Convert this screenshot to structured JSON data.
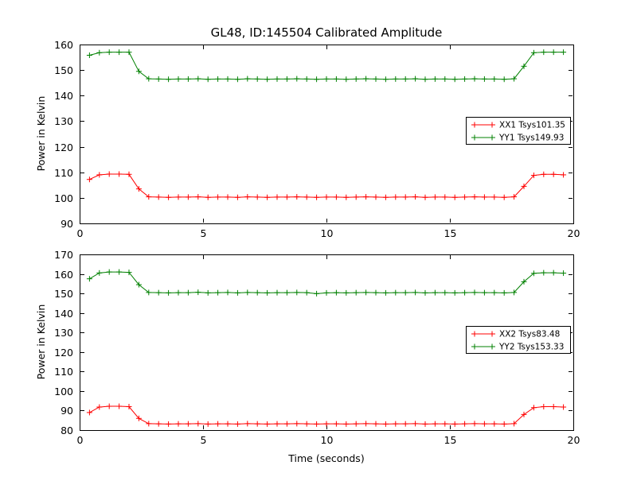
{
  "figure": {
    "title": "GL48, ID:145504 Calibrated Amplitude",
    "xlabel": "Time (seconds)",
    "background": "#ffffff"
  },
  "colors": {
    "xx": "#ff0000",
    "yy": "#008000",
    "axis": "#000000"
  },
  "chart_data": [
    {
      "type": "line",
      "ylabel": "Power in Kelvin",
      "xlim": [
        0,
        20
      ],
      "ylim": [
        90,
        160
      ],
      "xticks": [
        0,
        5,
        10,
        15,
        20
      ],
      "yticks": [
        90,
        100,
        110,
        120,
        130,
        140,
        150,
        160
      ],
      "grid": false,
      "legend_position": "center-right",
      "x": [
        0.4,
        0.8,
        1.2,
        1.6,
        2.0,
        2.4,
        2.8,
        3.2,
        3.6,
        4.0,
        4.4,
        4.8,
        5.2,
        5.6,
        6.0,
        6.4,
        6.8,
        7.2,
        7.6,
        8.0,
        8.4,
        8.8,
        9.2,
        9.6,
        10.0,
        10.4,
        10.8,
        11.2,
        11.6,
        12.0,
        12.4,
        12.8,
        13.2,
        13.6,
        14.0,
        14.4,
        14.8,
        15.2,
        15.6,
        16.0,
        16.4,
        16.8,
        17.2,
        17.6,
        18.0,
        18.4,
        18.8,
        19.2,
        19.6
      ],
      "series": [
        {
          "id": "XX1",
          "name": "XX1 Tsys101.35",
          "color": "#ff0000",
          "marker": "plus",
          "y": [
            107.2,
            109.0,
            109.3,
            109.3,
            109.2,
            103.5,
            100.4,
            100.3,
            100.2,
            100.3,
            100.3,
            100.4,
            100.2,
            100.3,
            100.3,
            100.2,
            100.4,
            100.3,
            100.2,
            100.3,
            100.3,
            100.4,
            100.3,
            100.2,
            100.3,
            100.3,
            100.2,
            100.3,
            100.4,
            100.3,
            100.2,
            100.3,
            100.3,
            100.4,
            100.2,
            100.3,
            100.3,
            100.2,
            100.3,
            100.4,
            100.3,
            100.3,
            100.2,
            100.4,
            104.5,
            108.8,
            109.2,
            109.2,
            109.0
          ]
        },
        {
          "id": "YY1",
          "name": "YY1 Tsys149.93",
          "color": "#008000",
          "marker": "plus",
          "y": [
            155.8,
            156.8,
            157.0,
            157.0,
            157.0,
            149.5,
            146.6,
            146.5,
            146.4,
            146.5,
            146.5,
            146.6,
            146.4,
            146.5,
            146.5,
            146.4,
            146.6,
            146.5,
            146.4,
            146.5,
            146.5,
            146.6,
            146.5,
            146.4,
            146.5,
            146.5,
            146.4,
            146.5,
            146.6,
            146.5,
            146.4,
            146.5,
            146.5,
            146.6,
            146.4,
            146.5,
            146.5,
            146.4,
            146.5,
            146.6,
            146.5,
            146.5,
            146.4,
            146.6,
            151.5,
            156.8,
            157.0,
            157.0,
            157.0
          ]
        }
      ]
    },
    {
      "type": "line",
      "ylabel": "Power in Kelvin",
      "xlim": [
        0,
        20
      ],
      "ylim": [
        80,
        170
      ],
      "xticks": [
        0,
        5,
        10,
        15,
        20
      ],
      "yticks": [
        80,
        90,
        100,
        110,
        120,
        130,
        140,
        150,
        160,
        170
      ],
      "grid": false,
      "legend_position": "center-right",
      "x": [
        0.4,
        0.8,
        1.2,
        1.6,
        2.0,
        2.4,
        2.8,
        3.2,
        3.6,
        4.0,
        4.4,
        4.8,
        5.2,
        5.6,
        6.0,
        6.4,
        6.8,
        7.2,
        7.6,
        8.0,
        8.4,
        8.8,
        9.2,
        9.6,
        10.0,
        10.4,
        10.8,
        11.2,
        11.6,
        12.0,
        12.4,
        12.8,
        13.2,
        13.6,
        14.0,
        14.4,
        14.8,
        15.2,
        15.6,
        16.0,
        16.4,
        16.8,
        17.2,
        17.6,
        18.0,
        18.4,
        18.8,
        19.2,
        19.6
      ],
      "series": [
        {
          "id": "XX2",
          "name": "XX2 Tsys83.48",
          "color": "#ff0000",
          "marker": "plus",
          "y": [
            89.0,
            91.8,
            92.2,
            92.2,
            92.0,
            86.0,
            83.3,
            83.2,
            83.1,
            83.2,
            83.2,
            83.3,
            83.1,
            83.2,
            83.2,
            83.1,
            83.3,
            83.2,
            83.1,
            83.2,
            83.2,
            83.3,
            83.2,
            83.1,
            83.2,
            83.2,
            83.1,
            83.2,
            83.3,
            83.2,
            83.1,
            83.2,
            83.2,
            83.3,
            83.1,
            83.2,
            83.2,
            83.1,
            83.2,
            83.3,
            83.2,
            83.2,
            83.1,
            83.3,
            88.0,
            91.5,
            92.0,
            92.0,
            91.8
          ]
        },
        {
          "id": "YY2",
          "name": "YY2 Tsys153.33",
          "color": "#008000",
          "marker": "plus",
          "y": [
            157.5,
            160.5,
            161.0,
            161.0,
            160.8,
            154.5,
            150.5,
            150.4,
            150.3,
            150.4,
            150.4,
            150.6,
            150.3,
            150.4,
            150.5,
            150.3,
            150.5,
            150.4,
            150.3,
            150.4,
            150.4,
            150.5,
            150.4,
            149.9,
            150.3,
            150.4,
            150.3,
            150.4,
            150.5,
            150.4,
            150.3,
            150.4,
            150.4,
            150.5,
            150.3,
            150.4,
            150.4,
            150.3,
            150.4,
            150.5,
            150.4,
            150.4,
            150.3,
            150.5,
            156.0,
            160.3,
            160.6,
            160.6,
            160.4
          ]
        }
      ]
    }
  ]
}
